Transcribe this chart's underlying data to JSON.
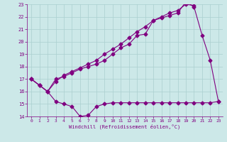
{
  "line1_x": [
    0,
    1,
    2,
    3,
    4,
    5,
    6,
    7,
    8,
    9,
    10,
    11,
    12,
    13,
    14,
    15,
    16,
    17,
    18,
    19,
    20,
    21,
    22,
    23
  ],
  "line1_y": [
    17.0,
    16.5,
    16.0,
    17.0,
    17.2,
    17.5,
    17.8,
    18.0,
    18.2,
    18.5,
    19.0,
    19.5,
    19.8,
    20.5,
    20.6,
    21.7,
    21.9,
    22.1,
    22.3,
    23.2,
    22.8,
    20.5,
    18.5,
    15.2
  ],
  "line2_x": [
    0,
    1,
    2,
    3,
    4,
    5,
    6,
    7,
    8,
    9,
    10,
    11,
    12,
    13,
    14,
    15,
    16,
    17,
    18,
    19,
    20
  ],
  "line2_y": [
    17.0,
    16.5,
    16.0,
    16.8,
    17.3,
    17.6,
    17.9,
    18.2,
    18.5,
    19.0,
    19.4,
    19.8,
    20.3,
    20.8,
    21.2,
    21.7,
    22.0,
    22.3,
    22.5,
    23.0,
    22.9
  ],
  "line3_x": [
    0,
    1,
    2,
    3,
    4,
    5,
    6,
    7,
    8,
    9,
    10,
    11,
    12,
    13,
    14,
    15,
    16,
    17,
    18,
    19,
    20,
    21,
    22,
    23
  ],
  "line3_y": [
    17.0,
    16.5,
    16.0,
    15.2,
    15.0,
    14.8,
    14.0,
    14.1,
    14.8,
    15.0,
    15.1,
    15.1,
    15.1,
    15.1,
    15.1,
    15.1,
    15.1,
    15.1,
    15.1,
    15.1,
    15.1,
    15.1,
    15.1,
    15.2
  ],
  "line_color": "#800080",
  "bg_color": "#cce8e8",
  "grid_color": "#aacfcf",
  "xlabel": "Windchill (Refroidissement éolien,°C)",
  "xlim": [
    -0.5,
    23.5
  ],
  "ylim": [
    14,
    23
  ],
  "yticks": [
    14,
    15,
    16,
    17,
    18,
    19,
    20,
    21,
    22,
    23
  ],
  "xticks": [
    0,
    1,
    2,
    3,
    4,
    5,
    6,
    7,
    8,
    9,
    10,
    11,
    12,
    13,
    14,
    15,
    16,
    17,
    18,
    19,
    20,
    21,
    22,
    23
  ],
  "marker": "D",
  "marker_size": 2.5,
  "line_width": 0.8
}
